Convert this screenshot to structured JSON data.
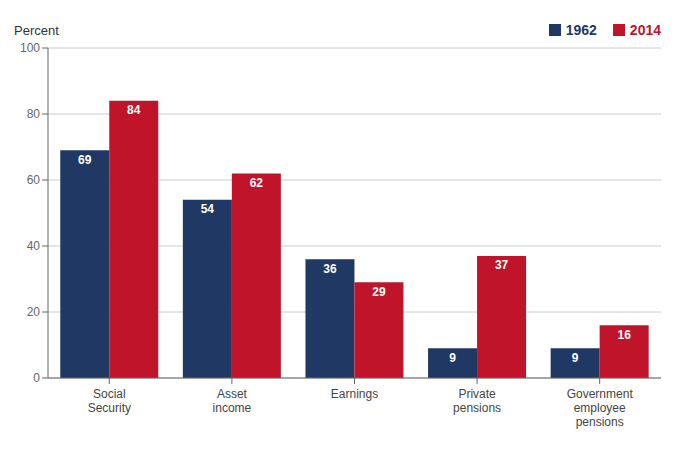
{
  "chart_data": {
    "type": "bar",
    "categories": [
      "Social\nSecurity",
      "Asset\nincome",
      "Earnings",
      "Private\npensions",
      "Government\nemployee\npensions"
    ],
    "series": [
      {
        "name": "1962",
        "color": "#1f3864",
        "values": [
          69,
          54,
          36,
          9,
          9
        ]
      },
      {
        "name": "2014",
        "color": "#c0142a",
        "values": [
          84,
          62,
          29,
          37,
          16
        ]
      }
    ],
    "ylabel": "Percent",
    "ylim": [
      0,
      100
    ],
    "yticks": [
      0,
      20,
      40,
      60,
      80,
      100
    ],
    "grid": true,
    "legend": "upper right",
    "data_labels": true
  }
}
